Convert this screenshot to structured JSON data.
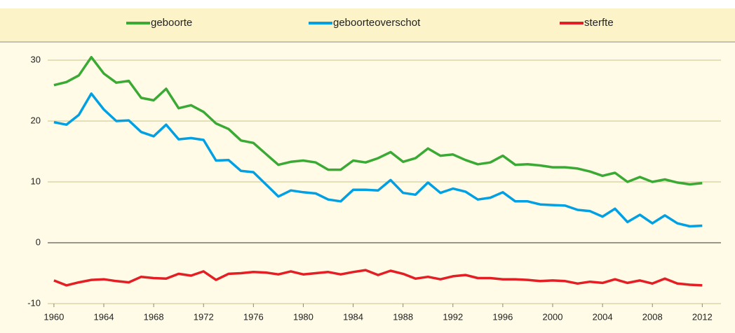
{
  "chart_data": {
    "type": "line",
    "legend": "top",
    "grid": true,
    "xlim": [
      1959.5,
      2013.5
    ],
    "xticks": [
      1960,
      1964,
      1968,
      1972,
      1976,
      1980,
      1984,
      1988,
      1992,
      1996,
      2000,
      2004,
      2008,
      2012
    ],
    "ylim": [
      -10,
      30
    ],
    "yticks": [
      -10,
      0,
      10,
      20,
      30
    ],
    "x": [
      1960,
      1961,
      1962,
      1963,
      1964,
      1965,
      1966,
      1967,
      1968,
      1969,
      1970,
      1971,
      1972,
      1973,
      1974,
      1975,
      1976,
      1977,
      1978,
      1979,
      1980,
      1981,
      1982,
      1983,
      1984,
      1985,
      1986,
      1987,
      1988,
      1989,
      1990,
      1991,
      1992,
      1993,
      1994,
      1995,
      1996,
      1997,
      1998,
      1999,
      2000,
      2001,
      2002,
      2003,
      2004,
      2005,
      2006,
      2007,
      2008,
      2009,
      2010,
      2011,
      2012
    ],
    "series": [
      {
        "name": "geboorte",
        "color": "#3aaa35",
        "values": [
          25.9,
          26.4,
          27.5,
          30.5,
          27.8,
          26.3,
          26.6,
          23.8,
          23.4,
          25.3,
          22.1,
          22.6,
          21.5,
          19.6,
          18.7,
          16.8,
          16.4,
          14.6,
          12.8,
          13.3,
          13.5,
          13.2,
          12.0,
          12.0,
          13.5,
          13.2,
          13.9,
          14.9,
          13.3,
          13.9,
          15.5,
          14.3,
          14.5,
          13.6,
          12.9,
          13.2,
          14.3,
          12.8,
          12.9,
          12.7,
          12.4,
          12.4,
          12.2,
          11.7,
          11.0,
          11.5,
          10.0,
          10.8,
          10.0,
          10.4,
          9.9,
          9.6,
          9.8
        ]
      },
      {
        "name": "geboorteoverschot",
        "color": "#00a0e3",
        "values": [
          19.8,
          19.4,
          21.0,
          24.5,
          21.9,
          20.0,
          20.1,
          18.2,
          17.5,
          19.4,
          17.0,
          17.2,
          16.9,
          13.5,
          13.6,
          11.8,
          11.6,
          9.6,
          7.6,
          8.6,
          8.3,
          8.1,
          7.1,
          6.8,
          8.7,
          8.7,
          8.6,
          10.3,
          8.2,
          7.9,
          9.9,
          8.2,
          8.9,
          8.4,
          7.1,
          7.4,
          8.3,
          6.8,
          6.8,
          6.3,
          6.2,
          6.1,
          5.4,
          5.2,
          4.3,
          5.6,
          3.4,
          4.6,
          3.2,
          4.5,
          3.2,
          2.7,
          2.8
        ]
      },
      {
        "name": "sterfte",
        "color": "#e31e24",
        "values": [
          -6.2,
          -7.0,
          -6.5,
          -6.1,
          -6.0,
          -6.3,
          -6.5,
          -5.6,
          -5.8,
          -5.9,
          -5.1,
          -5.4,
          -4.7,
          -6.1,
          -5.1,
          -5.0,
          -4.8,
          -4.9,
          -5.2,
          -4.7,
          -5.2,
          -5.0,
          -4.8,
          -5.2,
          -4.8,
          -4.5,
          -5.3,
          -4.6,
          -5.1,
          -5.9,
          -5.6,
          -6.0,
          -5.5,
          -5.3,
          -5.8,
          -5.8,
          -6.0,
          -6.0,
          -6.1,
          -6.3,
          -6.2,
          -6.3,
          -6.7,
          -6.4,
          -6.6,
          -6.0,
          -6.6,
          -6.2,
          -6.7,
          -5.9,
          -6.7,
          -6.9,
          -7.0
        ]
      }
    ]
  }
}
